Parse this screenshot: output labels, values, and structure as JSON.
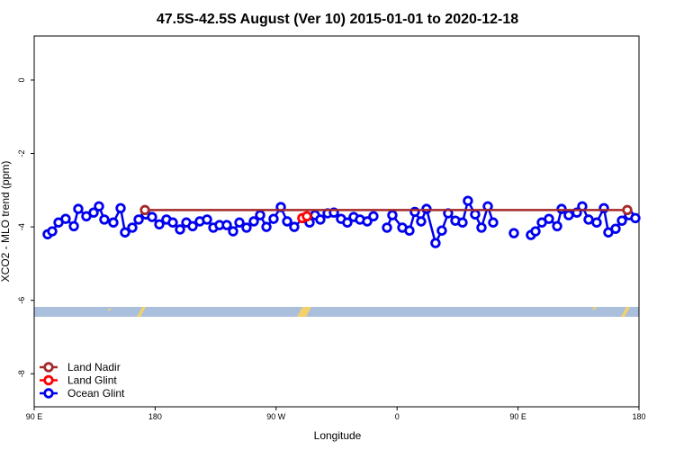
{
  "chart_data": {
    "type": "line",
    "title": "47.5S-42.5S August (Ver 10)   2015-01-01 to 2020-12-18",
    "x_label": "Longitude",
    "y_label": "XCO2 - MLO trend (ppm)",
    "xlim": [
      90,
      540
    ],
    "xticks": [
      {
        "value": 90,
        "label": "90 E"
      },
      {
        "value": 180,
        "label": "180"
      },
      {
        "value": 270,
        "label": "90 W"
      },
      {
        "value": 360,
        "label": "0"
      },
      {
        "value": 450,
        "label": "90 E"
      },
      {
        "value": 540,
        "label": "180"
      }
    ],
    "ylim": [
      -8.9,
      1.2
    ],
    "yticks": [
      0,
      -2,
      -4,
      -6,
      -8
    ],
    "legend": "bottom-left",
    "series": [
      {
        "name": "Land Nadir",
        "color": "#a52a2a",
        "x": [
          172.4,
          531.3
        ],
        "values": [
          -3.54,
          -3.54
        ]
      },
      {
        "name": "Land Glint",
        "color": "#ff0000",
        "x": [
          289.5,
          292.9
        ],
        "values": [
          -3.76,
          -3.71
        ]
      },
      {
        "name": "Ocean Glint",
        "color": "#0000ee",
        "x": [
          100.0,
          103.4,
          108.1,
          113.4,
          119.5,
          122.8,
          128.8,
          134.2,
          138.2,
          142.2,
          148.9,
          154.3,
          157.6,
          163.0,
          167.7,
          173.0,
          177.7,
          183.1,
          188.4,
          193.1,
          198.5,
          203.2,
          207.9,
          213.2,
          218.6,
          223.3,
          227.9,
          233.3,
          238.0,
          242.7,
          248.0,
          253.4,
          258.1,
          262.8,
          268.1,
          273.5,
          278.2,
          283.5,
          290.2,
          294.9,
          298.9,
          302.9,
          308.3,
          313.0,
          318.3,
          323.0,
          327.7,
          332.4,
          337.8,
          342.4,
          347.5,
          352.5,
          356.5,
          363.9,
          369.2,
          373.2,
          377.9,
          381.9,
          388.6,
          393.3,
          398.0,
          403.4,
          408.7,
          412.7,
          418.1,
          422.8,
          427.5,
          431.5,
          439.2,
          446.9,
          453.3,
          459.6,
          463.0,
          467.7,
          473.0,
          479.1,
          482.4,
          487.7,
          493.8,
          497.8,
          502.5,
          508.5,
          513.9,
          517.2,
          522.6,
          527.3,
          532.6,
          537.3
        ],
        "values": [
          -4.2,
          -4.12,
          -3.88,
          -3.78,
          -3.98,
          -3.51,
          -3.71,
          -3.61,
          -3.44,
          -3.8,
          -3.88,
          -3.49,
          -4.15,
          -4.02,
          -3.8,
          -3.66,
          -3.73,
          -3.93,
          -3.8,
          -3.88,
          -4.07,
          -3.88,
          -3.98,
          -3.85,
          -3.8,
          -4.02,
          -3.95,
          -3.95,
          -4.12,
          -3.88,
          -4.02,
          -3.85,
          -3.68,
          -4.0,
          -3.78,
          -3.46,
          -3.85,
          -4.0,
          -3.76,
          -3.88,
          -3.68,
          -3.8,
          -3.63,
          -3.61,
          -3.78,
          -3.88,
          -3.73,
          -3.8,
          -3.85,
          -3.71,
          null,
          -4.02,
          -3.68,
          -4.02,
          -4.1,
          -3.59,
          -3.85,
          -3.51,
          -4.44,
          -4.1,
          -3.63,
          -3.83,
          -3.88,
          -3.29,
          -3.66,
          -4.02,
          -3.44,
          -3.88,
          null,
          -4.17,
          null,
          -4.22,
          -4.12,
          -3.88,
          -3.78,
          -3.98,
          -3.51,
          -3.68,
          -3.61,
          -3.44,
          -3.8,
          -3.88,
          -3.49,
          -4.15,
          -4.05,
          -3.83,
          -3.68,
          -3.76
        ]
      }
    ]
  }
}
